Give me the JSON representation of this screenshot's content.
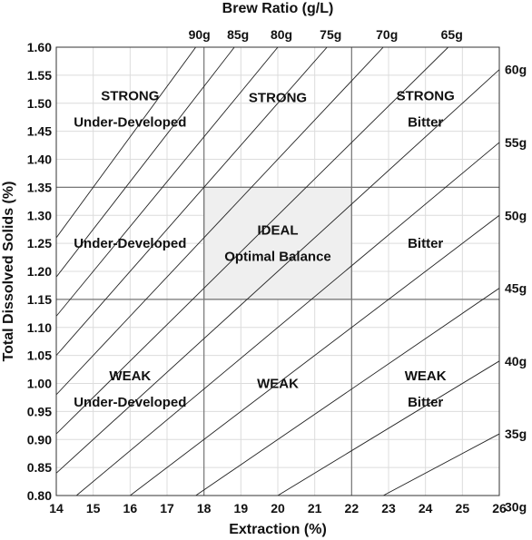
{
  "chart_data": {
    "type": "line",
    "title": "",
    "top_axis_label": "Brew Ratio (g/L)",
    "xlabel": "Extraction (%)",
    "ylabel": "Total Dissolved Solids (%)",
    "xlim": [
      14,
      26
    ],
    "ylim": [
      0.8,
      1.6
    ],
    "x_ticks": [
      "14",
      "15",
      "16",
      "17",
      "18",
      "19",
      "20",
      "21",
      "22",
      "23",
      "24",
      "25",
      "26"
    ],
    "y_ticks": [
      "0.80",
      "0.85",
      "0.90",
      "0.95",
      "1.00",
      "1.05",
      "1.10",
      "1.15",
      "1.20",
      "1.25",
      "1.30",
      "1.35",
      "1.40",
      "1.45",
      "1.50",
      "1.55",
      "1.60"
    ],
    "grid": true,
    "series": [
      {
        "name": "90g",
        "grams": 90,
        "slope": 0.09
      },
      {
        "name": "85g",
        "grams": 85,
        "slope": 0.085
      },
      {
        "name": "80g",
        "grams": 80,
        "slope": 0.08
      },
      {
        "name": "75g",
        "grams": 75,
        "slope": 0.075
      },
      {
        "name": "70g",
        "grams": 70,
        "slope": 0.07
      },
      {
        "name": "65g",
        "grams": 65,
        "slope": 0.065
      },
      {
        "name": "60g",
        "grams": 60,
        "slope": 0.06
      },
      {
        "name": "55g",
        "grams": 55,
        "slope": 0.055
      },
      {
        "name": "50g",
        "grams": 50,
        "slope": 0.05
      },
      {
        "name": "45g",
        "grams": 45,
        "slope": 0.045
      },
      {
        "name": "40g",
        "grams": 40,
        "slope": 0.04
      },
      {
        "name": "35g",
        "grams": 35,
        "slope": 0.035
      },
      {
        "name": "30g",
        "grams": 30,
        "slope": 0.03
      }
    ],
    "ideal_box": {
      "x": [
        18,
        22
      ],
      "y": [
        1.15,
        1.35
      ]
    },
    "divider_lines": {
      "x": [
        18,
        22
      ],
      "y": [
        1.15,
        1.35
      ]
    },
    "regions": [
      {
        "lines": [
          "STRONG",
          "Under-Developed"
        ],
        "x": 16,
        "y": 1.49
      },
      {
        "lines": [
          "STRONG"
        ],
        "x": 20,
        "y": 1.51
      },
      {
        "lines": [
          "STRONG",
          "Bitter"
        ],
        "x": 24,
        "y": 1.49
      },
      {
        "lines": [
          "Under-Developed"
        ],
        "x": 16,
        "y": 1.25
      },
      {
        "lines": [
          "IDEAL",
          "Optimal Balance"
        ],
        "x": 20,
        "y": 1.25
      },
      {
        "lines": [
          "Bitter"
        ],
        "x": 24,
        "y": 1.25
      },
      {
        "lines": [
          "WEAK",
          "Under-Developed"
        ],
        "x": 16,
        "y": 0.99
      },
      {
        "lines": [
          "WEAK"
        ],
        "x": 20,
        "y": 1.0
      },
      {
        "lines": [
          "WEAK",
          "Bitter"
        ],
        "x": 24,
        "y": 0.99
      }
    ]
  }
}
